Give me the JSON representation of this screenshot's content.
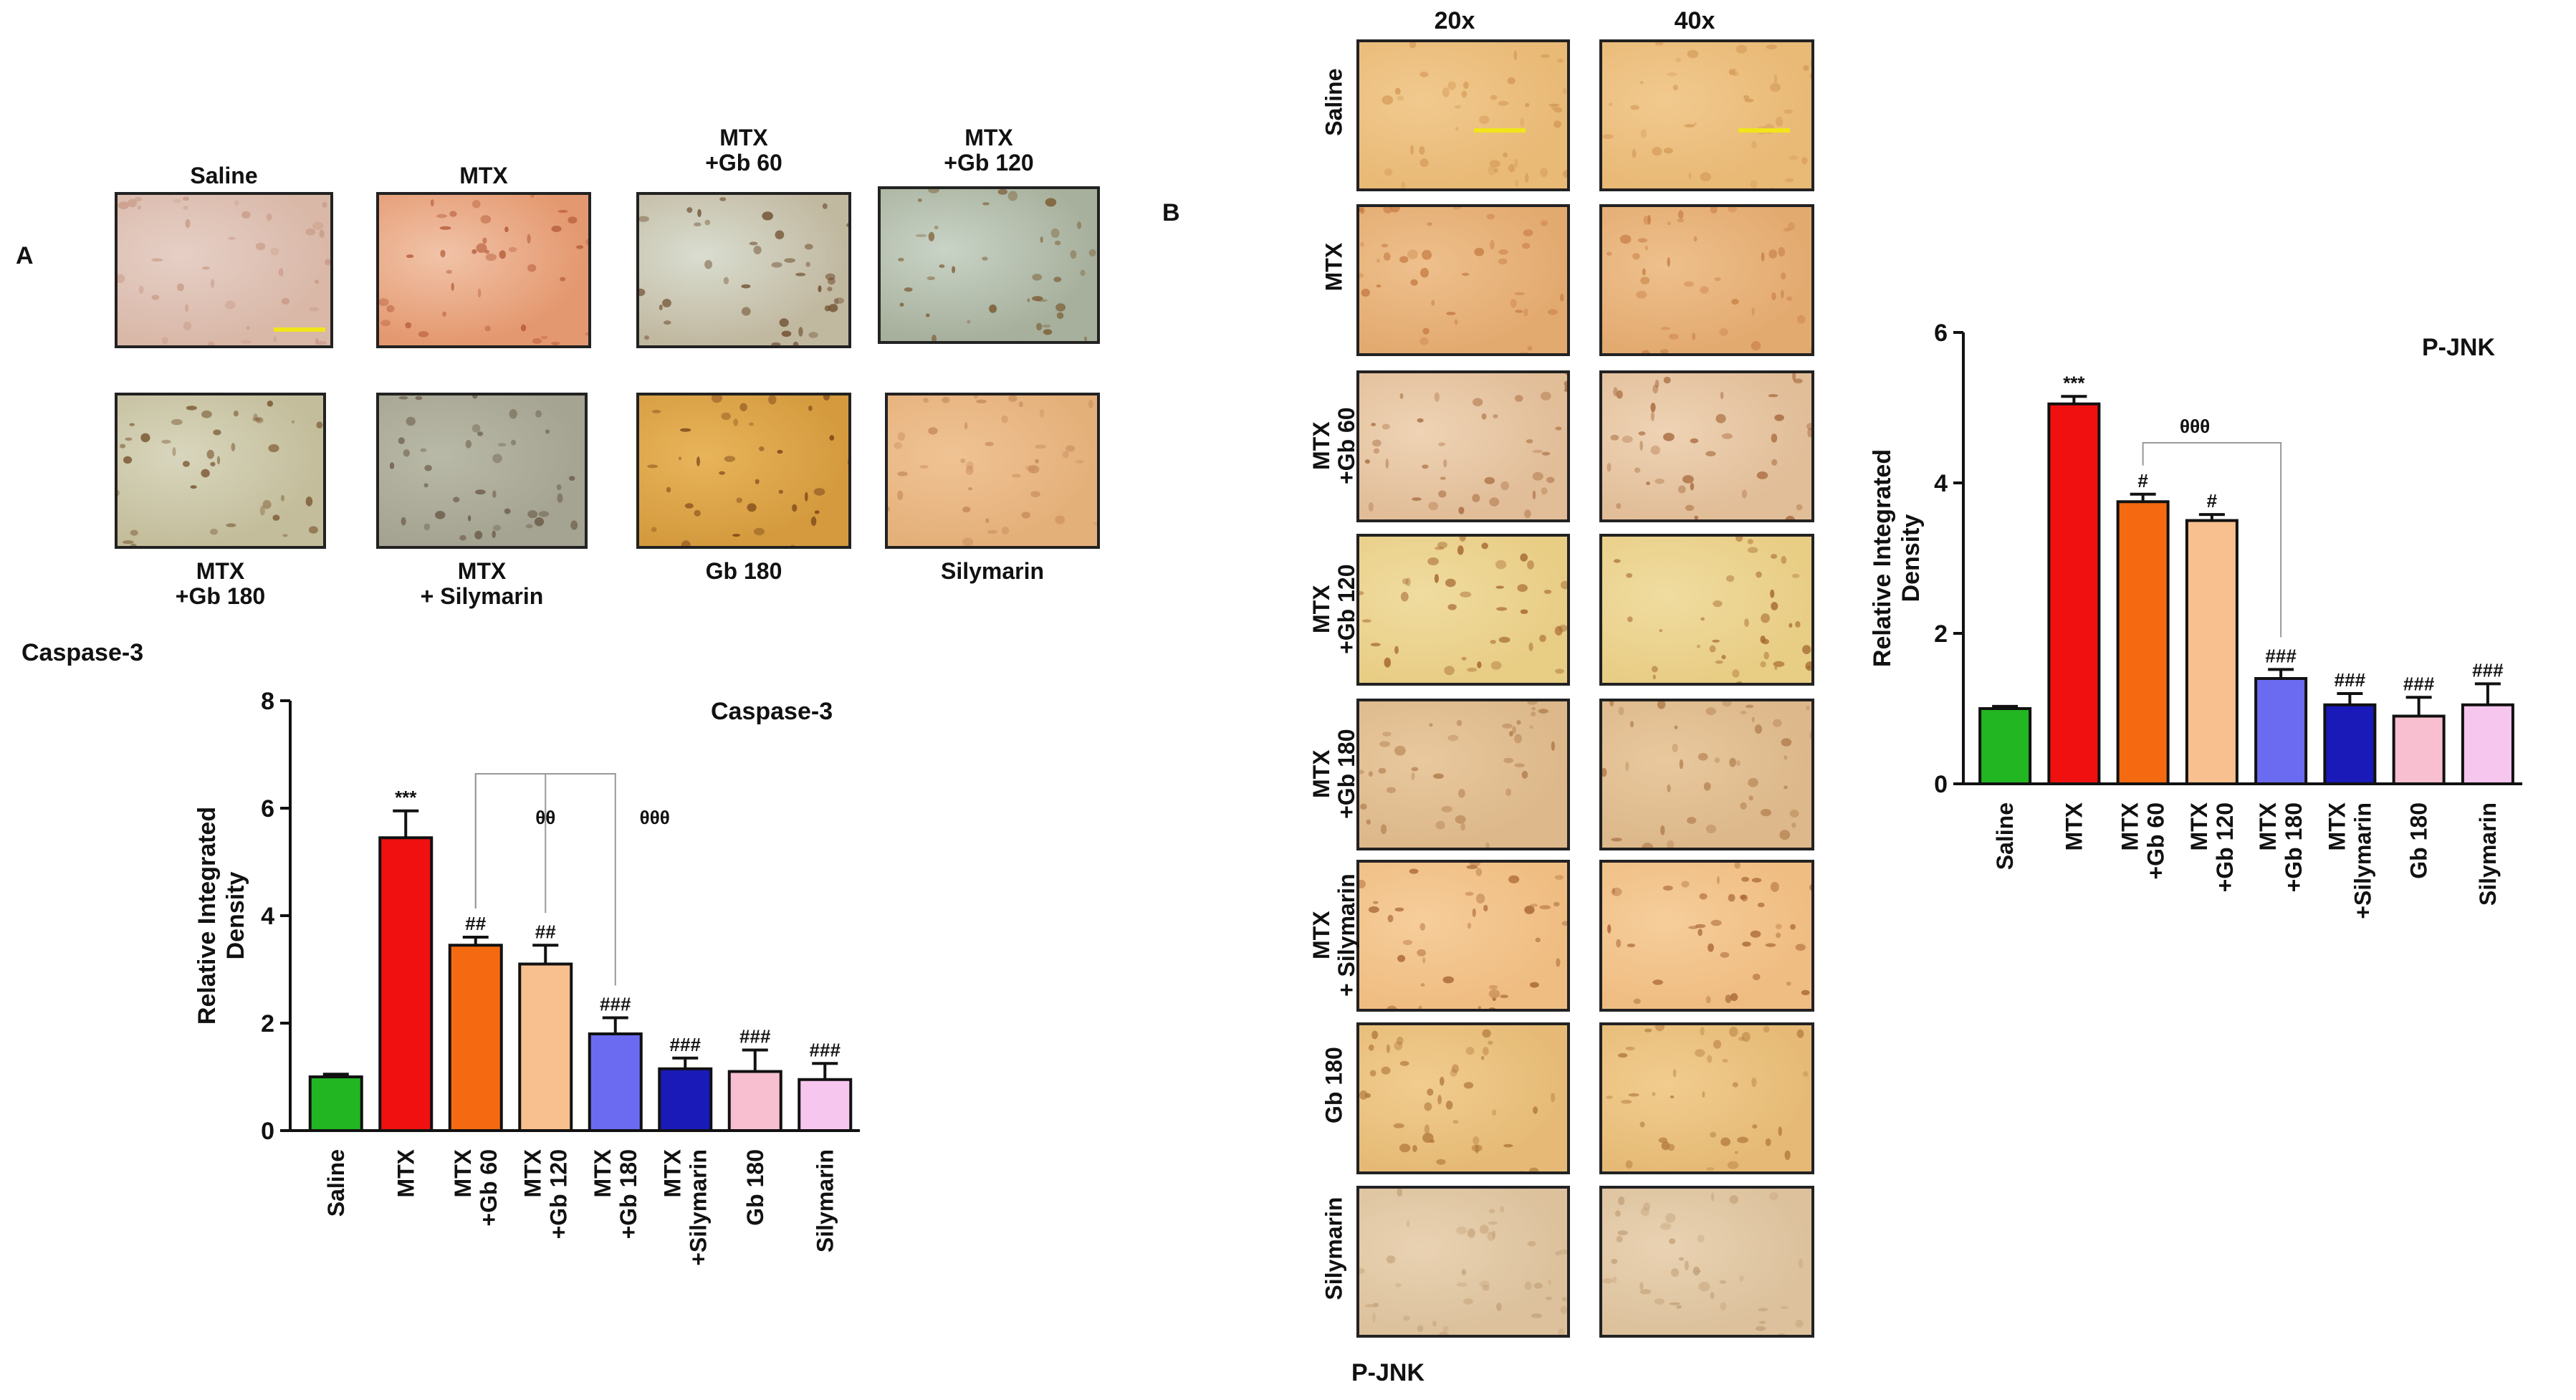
{
  "figure": {
    "panel_a_letter": "A",
    "panel_b_letter": "B",
    "panel_a_caption": "Caspase-3",
    "panel_b_caption": "P-JNK"
  },
  "micrographs_a": [
    {
      "top": "Saline",
      "bottom": "",
      "colors": [
        "#e6cfc6",
        "#d9b8a8",
        "#c89a86"
      ]
    },
    {
      "top": "MTX",
      "bottom": "",
      "colors": [
        "#f1c3a8",
        "#e4986f",
        "#b45a38"
      ]
    },
    {
      "top": "MTX\n+Gb 60",
      "bottom": "",
      "colors": [
        "#d9ddd0",
        "#c1b8a0",
        "#6b4a2a"
      ]
    },
    {
      "top": "MTX\n+Gb 120",
      "bottom": "",
      "colors": [
        "#c9d3c6",
        "#a7b09c",
        "#7a5a30"
      ]
    },
    {
      "top": "",
      "bottom": "MTX\n+Gb 180",
      "colors": [
        "#d8d6bd",
        "#c3bd9b",
        "#7a5630"
      ]
    },
    {
      "top": "",
      "bottom": "MTX\n+ Silymarin",
      "colors": [
        "#b9b9a8",
        "#a5a391",
        "#6a5b48"
      ]
    },
    {
      "top": "",
      "bottom": "Gb 180",
      "colors": [
        "#e8b45a",
        "#d59a3e",
        "#7a4518"
      ]
    },
    {
      "top": "",
      "bottom": "Silymarin",
      "colors": [
        "#f0c394",
        "#e4b07a",
        "#c5895a"
      ]
    }
  ],
  "micrographs_b": {
    "col_headers": [
      "20x",
      "40x"
    ],
    "rows": [
      {
        "label": "Saline",
        "colors": [
          "#f1c98e",
          "#e9b976",
          "#d49a58"
        ]
      },
      {
        "label": "MTX",
        "colors": [
          "#eec08c",
          "#e3aa70",
          "#c77d45"
        ]
      },
      {
        "label": "MTX\n+Gb 60",
        "colors": [
          "#eed3b4",
          "#e1bd98",
          "#a86a3d"
        ]
      },
      {
        "label": "MTX\n+Gb 120",
        "colors": [
          "#f0dca0",
          "#e8cd85",
          "#a4662f"
        ]
      },
      {
        "label": "MTX\n+Gb 180",
        "colors": [
          "#e9c89e",
          "#dcb88a",
          "#b07c4c"
        ]
      },
      {
        "label": "MTX\n+ Silymarin",
        "colors": [
          "#f6cd9a",
          "#efbd82",
          "#a86636"
        ]
      },
      {
        "label": "Gb 180",
        "colors": [
          "#f1cc8e",
          "#e6ba76",
          "#b27a3e"
        ]
      },
      {
        "label": "Silymarin",
        "colors": [
          "#e9d2b2",
          "#dcc19c",
          "#c4a27a"
        ]
      }
    ]
  },
  "chart_data": [
    {
      "type": "bar",
      "title": "Caspase-3",
      "xlabel": "",
      "ylabel": "Relative Integrated\nDensity",
      "ylim": [
        0,
        8
      ],
      "yticks": [
        0,
        2,
        4,
        6,
        8
      ],
      "categories": [
        "Saline",
        "MTX",
        "MTX\n+Gb 60",
        "MTX\n+Gb 120",
        "MTX\n+Gb 180",
        "MTX\n+Silymarin",
        "Gb 180",
        "Silymarin"
      ],
      "values": [
        1.0,
        5.45,
        3.45,
        3.1,
        1.8,
        1.15,
        1.1,
        0.95
      ],
      "errors": [
        0.05,
        0.5,
        0.15,
        0.35,
        0.3,
        0.2,
        0.4,
        0.3
      ],
      "colors": [
        "#22b622",
        "#f01010",
        "#f56a10",
        "#f8c08e",
        "#6b6bf2",
        "#1a1ab8",
        "#f7bfcf",
        "#f7c6ee"
      ],
      "annotations": [
        "",
        "***",
        "##",
        "##",
        "###",
        "###",
        "###",
        "###"
      ],
      "brackets": [
        {
          "from": 2,
          "to": 3,
          "label": "θθ"
        },
        {
          "from": 2,
          "to": 4,
          "label": "θθθ"
        }
      ]
    },
    {
      "type": "bar",
      "title": "P-JNK",
      "xlabel": "",
      "ylabel": "Relative Integrated\nDensity",
      "ylim": [
        0,
        6
      ],
      "yticks": [
        0,
        2,
        4,
        6
      ],
      "categories": [
        "Saline",
        "MTX",
        "MTX\n+Gb 60",
        "MTX\n+Gb 120",
        "MTX\n+Gb 180",
        "MTX\n+Silymarin",
        "Gb 180",
        "Silymarin"
      ],
      "values": [
        1.0,
        5.05,
        3.75,
        3.5,
        1.4,
        1.05,
        0.9,
        1.05
      ],
      "errors": [
        0.03,
        0.1,
        0.1,
        0.08,
        0.12,
        0.15,
        0.25,
        0.28
      ],
      "colors": [
        "#22b622",
        "#f01010",
        "#f56a10",
        "#f8c08e",
        "#6b6bf2",
        "#1a1ab8",
        "#f7bfcf",
        "#f7c6ee"
      ],
      "annotations": [
        "",
        "***",
        "#",
        "#",
        "###",
        "###",
        "###",
        "###"
      ],
      "brackets": [
        {
          "from": 2,
          "to": 4,
          "label": "θθθ"
        }
      ]
    }
  ]
}
